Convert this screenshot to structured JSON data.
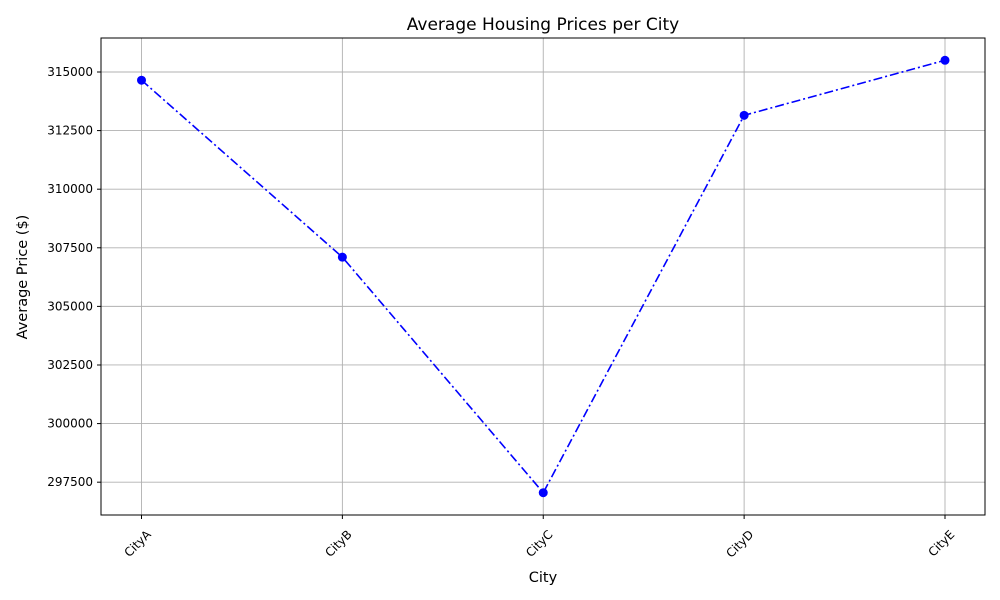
{
  "chart_data": {
    "type": "line",
    "title": "Average Housing Prices per City",
    "xlabel": "City",
    "ylabel": "Average Price ($)",
    "categories": [
      "CityA",
      "CityB",
      "CityC",
      "CityD",
      "CityE"
    ],
    "series": [
      {
        "values": [
          314650,
          307100,
          297050,
          313150,
          315500
        ],
        "color": "#0000ff",
        "line_style": "dash-dot",
        "marker": "circle"
      }
    ],
    "ylim": [
      296100,
      316450
    ],
    "yticks": [
      297500,
      300000,
      302500,
      305000,
      307500,
      310000,
      312500,
      315000
    ],
    "x_tick_rotation_deg": 45,
    "grid": true
  }
}
